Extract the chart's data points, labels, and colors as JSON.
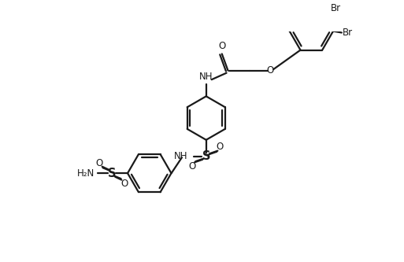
{
  "bg_color": "#ffffff",
  "line_color": "#1a1a1a",
  "line_width": 1.6,
  "font_size": 8.5,
  "figsize": [
    5.13,
    3.33
  ],
  "dpi": 100,
  "xlim": [
    0,
    10.26
  ],
  "ylim": [
    0,
    6.66
  ]
}
